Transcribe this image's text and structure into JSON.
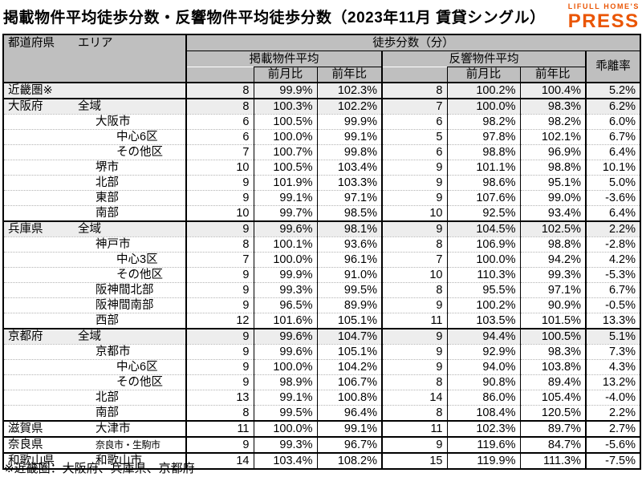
{
  "title": "掲載物件平均徒歩分数・反響物件平均徒歩分数（2023年11月 賃貸シングル）",
  "logo": {
    "top": "LIFULL HOME'S",
    "bottom": "PRESS"
  },
  "colors": {
    "logo_orange": "#ea5504",
    "header_bg": "#bfbfbf",
    "row_shaded": "#ededed"
  },
  "table": {
    "header": {
      "col_pref": "都道府県",
      "col_area": "エリア",
      "group_main": "徒歩分数（分）",
      "group_listed": "掲載物件平均",
      "group_inquiry": "反響物件平均",
      "col_mom": "前月比",
      "col_yoy": "前年比",
      "col_divergence": "乖離率"
    },
    "rows": [
      {
        "pref": "近畿圏※",
        "area": "",
        "level": 0,
        "shaded": true,
        "section": true,
        "small": false,
        "v1": 8,
        "mom1": "99.9%",
        "yoy1": "102.3%",
        "v2": 8,
        "mom2": "100.2%",
        "yoy2": "100.4%",
        "div": "5.2%"
      },
      {
        "pref": "大阪府",
        "area": "全域",
        "level": 1,
        "shaded": true,
        "section": true,
        "small": false,
        "v1": 8,
        "mom1": "100.3%",
        "yoy1": "102.2%",
        "v2": 7,
        "mom2": "100.0%",
        "yoy2": "98.3%",
        "div": "6.2%"
      },
      {
        "pref": "",
        "area": "大阪市",
        "level": 2,
        "shaded": false,
        "section": false,
        "small": false,
        "v1": 6,
        "mom1": "100.5%",
        "yoy1": "99.9%",
        "v2": 6,
        "mom2": "98.2%",
        "yoy2": "98.2%",
        "div": "6.0%"
      },
      {
        "pref": "",
        "area": "中心6区",
        "level": 3,
        "shaded": false,
        "section": false,
        "small": false,
        "v1": 6,
        "mom1": "100.0%",
        "yoy1": "99.1%",
        "v2": 5,
        "mom2": "97.8%",
        "yoy2": "102.1%",
        "div": "6.7%"
      },
      {
        "pref": "",
        "area": "その他区",
        "level": 3,
        "shaded": false,
        "section": false,
        "small": false,
        "v1": 7,
        "mom1": "100.7%",
        "yoy1": "99.8%",
        "v2": 6,
        "mom2": "98.8%",
        "yoy2": "96.9%",
        "div": "6.4%"
      },
      {
        "pref": "",
        "area": "堺市",
        "level": 2,
        "shaded": false,
        "section": false,
        "small": false,
        "v1": 10,
        "mom1": "100.5%",
        "yoy1": "103.4%",
        "v2": 9,
        "mom2": "101.1%",
        "yoy2": "98.8%",
        "div": "10.1%"
      },
      {
        "pref": "",
        "area": "北部",
        "level": 2,
        "shaded": false,
        "section": false,
        "small": false,
        "v1": 9,
        "mom1": "101.9%",
        "yoy1": "103.3%",
        "v2": 9,
        "mom2": "98.6%",
        "yoy2": "95.1%",
        "div": "5.0%"
      },
      {
        "pref": "",
        "area": "東部",
        "level": 2,
        "shaded": false,
        "section": false,
        "small": false,
        "v1": 9,
        "mom1": "99.1%",
        "yoy1": "97.1%",
        "v2": 9,
        "mom2": "107.6%",
        "yoy2": "99.0%",
        "div": "-3.6%"
      },
      {
        "pref": "",
        "area": "南部",
        "level": 2,
        "shaded": false,
        "section": false,
        "small": false,
        "v1": 10,
        "mom1": "99.7%",
        "yoy1": "98.5%",
        "v2": 10,
        "mom2": "92.5%",
        "yoy2": "93.4%",
        "div": "6.4%"
      },
      {
        "pref": "兵庫県",
        "area": "全域",
        "level": 1,
        "shaded": true,
        "section": true,
        "small": false,
        "v1": 9,
        "mom1": "99.6%",
        "yoy1": "98.1%",
        "v2": 9,
        "mom2": "104.5%",
        "yoy2": "102.5%",
        "div": "2.2%"
      },
      {
        "pref": "",
        "area": "神戸市",
        "level": 2,
        "shaded": false,
        "section": false,
        "small": false,
        "v1": 8,
        "mom1": "100.1%",
        "yoy1": "93.6%",
        "v2": 8,
        "mom2": "106.9%",
        "yoy2": "98.8%",
        "div": "-2.8%"
      },
      {
        "pref": "",
        "area": "中心3区",
        "level": 3,
        "shaded": false,
        "section": false,
        "small": false,
        "v1": 7,
        "mom1": "100.0%",
        "yoy1": "96.1%",
        "v2": 7,
        "mom2": "100.0%",
        "yoy2": "94.2%",
        "div": "4.2%"
      },
      {
        "pref": "",
        "area": "その他区",
        "level": 3,
        "shaded": false,
        "section": false,
        "small": false,
        "v1": 9,
        "mom1": "99.9%",
        "yoy1": "91.0%",
        "v2": 10,
        "mom2": "110.3%",
        "yoy2": "99.3%",
        "div": "-5.3%"
      },
      {
        "pref": "",
        "area": "阪神間北部",
        "level": 2,
        "shaded": false,
        "section": false,
        "small": false,
        "v1": 9,
        "mom1": "99.3%",
        "yoy1": "99.5%",
        "v2": 8,
        "mom2": "95.5%",
        "yoy2": "97.1%",
        "div": "6.7%"
      },
      {
        "pref": "",
        "area": "阪神間南部",
        "level": 2,
        "shaded": false,
        "section": false,
        "small": false,
        "v1": 9,
        "mom1": "96.5%",
        "yoy1": "89.9%",
        "v2": 9,
        "mom2": "100.2%",
        "yoy2": "90.9%",
        "div": "-0.5%"
      },
      {
        "pref": "",
        "area": "西部",
        "level": 2,
        "shaded": false,
        "section": false,
        "small": false,
        "v1": 12,
        "mom1": "101.6%",
        "yoy1": "105.1%",
        "v2": 11,
        "mom2": "103.5%",
        "yoy2": "101.5%",
        "div": "13.3%"
      },
      {
        "pref": "京都府",
        "area": "全域",
        "level": 1,
        "shaded": true,
        "section": true,
        "small": false,
        "v1": 9,
        "mom1": "99.6%",
        "yoy1": "104.7%",
        "v2": 9,
        "mom2": "94.4%",
        "yoy2": "100.5%",
        "div": "5.1%"
      },
      {
        "pref": "",
        "area": "京都市",
        "level": 2,
        "shaded": false,
        "section": false,
        "small": false,
        "v1": 9,
        "mom1": "99.6%",
        "yoy1": "105.1%",
        "v2": 9,
        "mom2": "92.9%",
        "yoy2": "98.3%",
        "div": "7.3%"
      },
      {
        "pref": "",
        "area": "中心6区",
        "level": 3,
        "shaded": false,
        "section": false,
        "small": false,
        "v1": 9,
        "mom1": "100.0%",
        "yoy1": "104.2%",
        "v2": 9,
        "mom2": "94.0%",
        "yoy2": "103.8%",
        "div": "4.3%"
      },
      {
        "pref": "",
        "area": "その他区",
        "level": 3,
        "shaded": false,
        "section": false,
        "small": false,
        "v1": 9,
        "mom1": "98.9%",
        "yoy1": "106.7%",
        "v2": 8,
        "mom2": "90.8%",
        "yoy2": "89.4%",
        "div": "13.2%"
      },
      {
        "pref": "",
        "area": "北部",
        "level": 2,
        "shaded": false,
        "section": false,
        "small": false,
        "v1": 13,
        "mom1": "99.1%",
        "yoy1": "100.8%",
        "v2": 14,
        "mom2": "86.0%",
        "yoy2": "105.4%",
        "div": "-4.0%"
      },
      {
        "pref": "",
        "area": "南部",
        "level": 2,
        "shaded": false,
        "section": false,
        "small": false,
        "v1": 8,
        "mom1": "99.5%",
        "yoy1": "96.4%",
        "v2": 8,
        "mom2": "108.4%",
        "yoy2": "120.5%",
        "div": "2.2%"
      },
      {
        "pref": "滋賀県",
        "area": "大津市",
        "level": 2,
        "shaded": false,
        "section": true,
        "small": false,
        "v1": 11,
        "mom1": "100.0%",
        "yoy1": "99.1%",
        "v2": 11,
        "mom2": "102.3%",
        "yoy2": "89.7%",
        "div": "2.7%"
      },
      {
        "pref": "奈良県",
        "area": "奈良市・生駒市",
        "level": 2,
        "shaded": false,
        "section": true,
        "small": true,
        "v1": 9,
        "mom1": "99.3%",
        "yoy1": "96.7%",
        "v2": 9,
        "mom2": "119.6%",
        "yoy2": "84.7%",
        "div": "-5.6%"
      },
      {
        "pref": "和歌山県",
        "area": "和歌山市",
        "level": 2,
        "shaded": false,
        "section": true,
        "small": false,
        "v1": 14,
        "mom1": "103.4%",
        "yoy1": "108.2%",
        "v2": 15,
        "mom2": "119.9%",
        "yoy2": "111.3%",
        "div": "-7.5%"
      }
    ]
  },
  "footnote": "※近畿圏：大阪府、兵庫県、京都府"
}
